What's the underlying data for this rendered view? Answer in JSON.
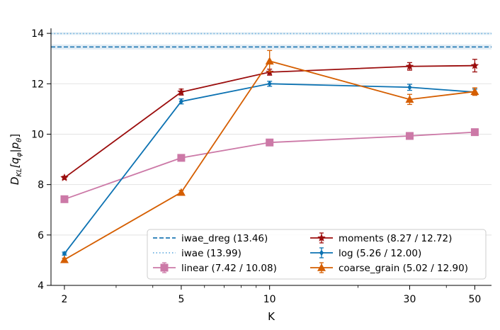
{
  "chart_data": {
    "type": "line",
    "xlabel": "K",
    "ylabel_main": "D",
    "ylabel_sub": "KL",
    "ylabel_rest": "[q",
    "ylabel_q_sub": "φ",
    "ylabel_mid": "|p",
    "ylabel_p_sub": "θ",
    "ylabel_end": "]",
    "x_scale": "log",
    "xlim": [
      1.8,
      57
    ],
    "ylim": [
      4,
      14.2
    ],
    "x_ticks": [
      2,
      5,
      10,
      30,
      50
    ],
    "x_tick_labels": [
      "2",
      "5",
      "10",
      "30",
      "50"
    ],
    "y_ticks": [
      4,
      6,
      8,
      10,
      12,
      14
    ],
    "y_tick_labels": [
      "4",
      "6",
      "8",
      "10",
      "12",
      "14"
    ],
    "grid": "horizontal",
    "legend_position": "lower-right",
    "reference_lines": [
      {
        "name": "iwae_dreg",
        "label": "iwae_dreg (13.46)",
        "value": 13.46,
        "band": 0.1,
        "style": "dashed",
        "color": "#1f77b4"
      },
      {
        "name": "iwae",
        "label": "iwae (13.99)",
        "value": 13.99,
        "band": 0.06,
        "style": "dotted",
        "color": "#6ab0e0"
      }
    ],
    "series": [
      {
        "name": "linear",
        "label": "linear (7.42 / 10.08)",
        "color": "#cc79a7",
        "marker": "square",
        "x": [
          2,
          5,
          10,
          30,
          50
        ],
        "values": [
          7.42,
          9.06,
          9.67,
          9.93,
          10.08
        ],
        "errors": [
          0.07,
          0.08,
          0.06,
          0.07,
          0.07
        ]
      },
      {
        "name": "moments",
        "label": "moments (8.27 / 12.72)",
        "color": "#9b0d0d",
        "marker": "star",
        "x": [
          2,
          5,
          10,
          30,
          50
        ],
        "values": [
          8.27,
          11.67,
          12.46,
          12.69,
          12.72
        ],
        "errors": [
          0.06,
          0.12,
          0.12,
          0.15,
          0.25
        ]
      },
      {
        "name": "log",
        "label": "log (5.26 / 12.00)",
        "color": "#0c72b2",
        "marker": "diamond",
        "x": [
          2,
          5,
          10,
          30,
          50
        ],
        "values": [
          5.26,
          11.3,
          12.0,
          11.86,
          11.67
        ],
        "errors": [
          0.06,
          0.1,
          0.1,
          0.12,
          0.12
        ]
      },
      {
        "name": "coarse_grain",
        "label": "coarse_grain (5.02 / 12.90)",
        "color": "#d55e00",
        "marker": "triangle",
        "x": [
          2,
          5,
          10,
          30,
          50
        ],
        "values": [
          5.02,
          7.69,
          12.9,
          11.38,
          11.69
        ],
        "errors": [
          0.06,
          0.08,
          0.42,
          0.2,
          0.15
        ]
      }
    ]
  }
}
